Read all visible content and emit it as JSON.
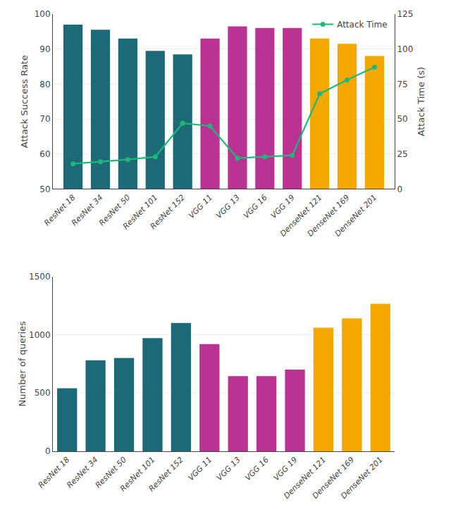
{
  "chart_data": [
    {
      "type": "bar",
      "categories": [
        "ResNet 18",
        "ResNet 34",
        "ResNet 50",
        "ResNet 101",
        "ResNet 152",
        "VGG 11",
        "VGG 13",
        "VGG 16",
        "VGG 19",
        "DenseNet 121",
        "DenseNet 169",
        "DenseNet 201"
      ],
      "series": [
        {
          "type": "bar",
          "values": [
            97,
            95.5,
            93,
            89.5,
            88.5,
            93,
            96.5,
            96,
            96,
            93,
            91.5,
            88
          ],
          "colors": [
            "#1c6978",
            "#1c6978",
            "#1c6978",
            "#1c6978",
            "#1c6978",
            "#ba3392",
            "#ba3392",
            "#ba3392",
            "#ba3392",
            "#f5a800",
            "#f5a800",
            "#f5a800"
          ]
        },
        {
          "name": "Attack Time",
          "type": "line",
          "axis": "y2",
          "color": "#1db87a",
          "marker": "circle",
          "values": [
            18,
            19.5,
            21,
            23,
            47,
            45,
            22,
            23,
            24,
            68,
            78,
            87
          ]
        }
      ],
      "ylabel": "Attack Success Rate",
      "ylim": [
        50,
        100
      ],
      "yticks": [
        50,
        60,
        70,
        80,
        90,
        100
      ],
      "y2label": "Attack Time (s)",
      "y2lim": [
        0,
        125
      ],
      "y2ticks": [
        0,
        25,
        50,
        75,
        100,
        125
      ],
      "grid": true,
      "legend": "upper right"
    },
    {
      "type": "bar",
      "categories": [
        "ResNet 18",
        "ResNet 34",
        "ResNet 50",
        "ResNet 101",
        "ResNet 152",
        "VGG 11",
        "VGG 13",
        "VGG 16",
        "VGG 19",
        "DenseNet 121",
        "DenseNet 169",
        "DenseNet 201"
      ],
      "values": [
        540,
        780,
        800,
        970,
        1100,
        920,
        645,
        645,
        700,
        1060,
        1140,
        1265
      ],
      "colors": [
        "#1c6978",
        "#1c6978",
        "#1c6978",
        "#1c6978",
        "#1c6978",
        "#ba3392",
        "#ba3392",
        "#ba3392",
        "#ba3392",
        "#f5a800",
        "#f5a800",
        "#f5a800"
      ],
      "ylabel": "Number of queries",
      "ylim": [
        0,
        1500
      ],
      "yticks": [
        0,
        500,
        1000,
        1500
      ],
      "grid": true
    }
  ]
}
